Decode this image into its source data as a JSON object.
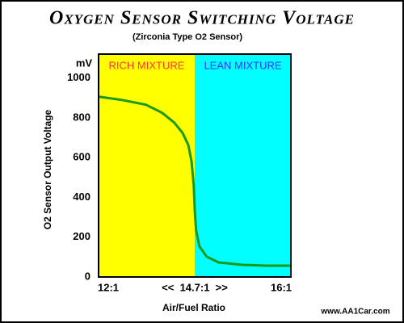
{
  "chart_data": {
    "type": "line",
    "title": "Oxygen Sensor Switching Voltage",
    "subtitle": "(Zirconia Type O2 Sensor)",
    "y_label": "O2 Sensor Output Voltage",
    "y_unit": "mV",
    "x_label": "Air/Fuel Ratio",
    "source": "www.AA1Car.com",
    "xlim": [
      11.7,
      16.13
    ],
    "xticks": [
      {
        "value": 12,
        "label": "12:1"
      },
      {
        "value": 14.7,
        "label": "<<  14.7:1  >>"
      },
      {
        "value": 16,
        "label": "16:1"
      }
    ],
    "ylim": [
      0,
      1120
    ],
    "yticks": [
      0,
      200,
      400,
      600,
      800,
      1000
    ],
    "regions": [
      {
        "label": "RICH MIXTURE",
        "color": "#ffff00",
        "label_color": "#ff3333",
        "from": 11.7,
        "to": 14.7
      },
      {
        "label": "LEAN MIXTURE",
        "color": "#00ffff",
        "label_color": "#3333ff",
        "from": 14.7,
        "to": 16.13
      }
    ],
    "series": [
      {
        "color": "#1a9a1a",
        "x": [
          11.7,
          12.41,
          13.17,
          13.68,
          14.06,
          14.32,
          14.5,
          14.6,
          14.67,
          14.7,
          14.72,
          14.77,
          14.88,
          15.06,
          15.42,
          15.78,
          16.13
        ],
        "values": [
          906,
          890,
          866,
          825,
          776,
          724,
          663,
          581,
          459,
          337,
          236,
          154,
          102,
          73,
          61,
          57,
          57
        ]
      }
    ]
  }
}
